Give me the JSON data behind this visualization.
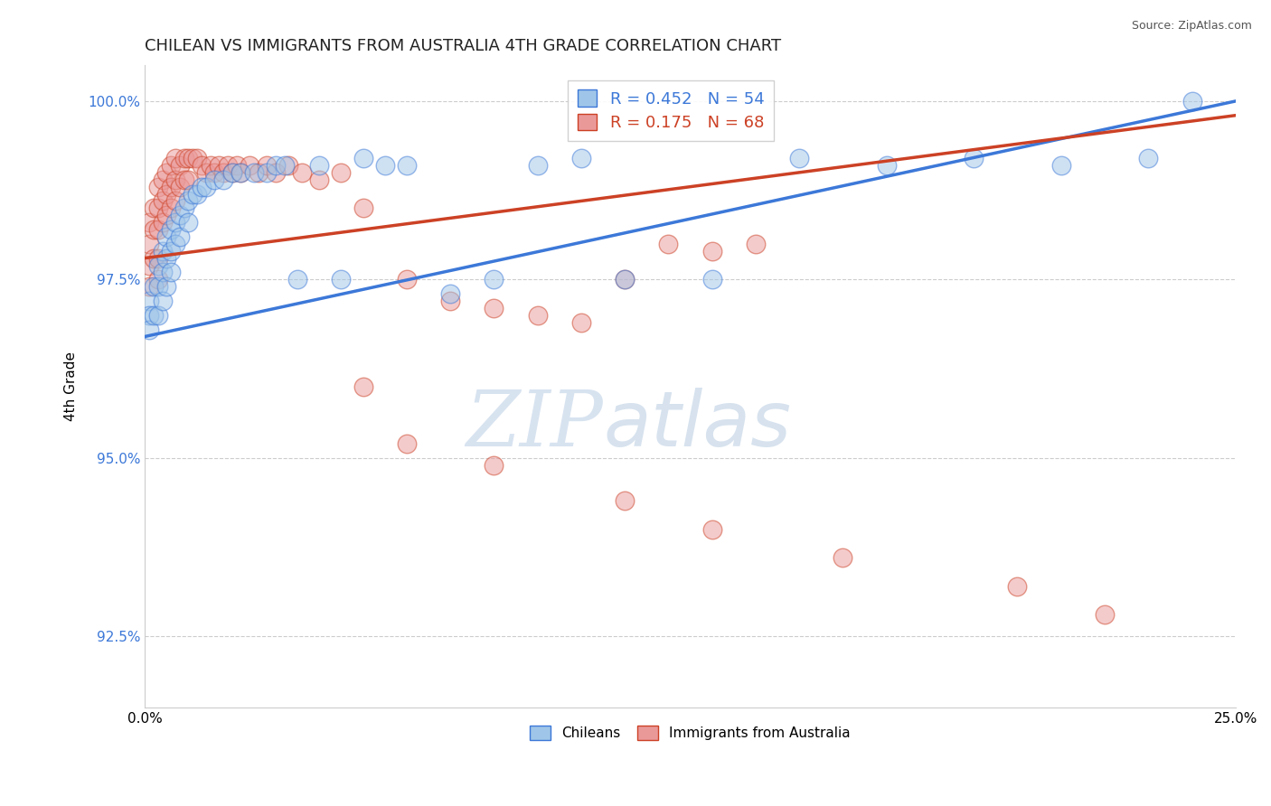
{
  "title": "CHILEAN VS IMMIGRANTS FROM AUSTRALIA 4TH GRADE CORRELATION CHART",
  "source_text": "Source: ZipAtlas.com",
  "ylabel": "4th Grade",
  "watermark_zip": "ZIP",
  "watermark_atlas": "atlas",
  "xlim": [
    0.0,
    0.25
  ],
  "ylim": [
    0.915,
    1.005
  ],
  "xtick_vals": [
    0.0,
    0.05,
    0.1,
    0.15,
    0.2,
    0.25
  ],
  "xtick_labels": [
    "0.0%",
    "",
    "",
    "",
    "",
    "25.0%"
  ],
  "ytick_vals": [
    0.925,
    0.95,
    0.975,
    1.0
  ],
  "ytick_labels": [
    "92.5%",
    "95.0%",
    "97.5%",
    "100.0%"
  ],
  "blue_color": "#9fc5e8",
  "pink_color": "#ea9999",
  "blue_line_color": "#3c78d8",
  "pink_line_color": "#cc4125",
  "legend_blue_label": "R = 0.452   N = 54",
  "legend_pink_label": "R = 0.175   N = 68",
  "chileans_label": "Chileans",
  "immigrants_label": "Immigrants from Australia",
  "blue_x": [
    0.001,
    0.001,
    0.001,
    0.002,
    0.002,
    0.003,
    0.003,
    0.003,
    0.004,
    0.004,
    0.004,
    0.005,
    0.005,
    0.005,
    0.006,
    0.006,
    0.006,
    0.007,
    0.007,
    0.008,
    0.008,
    0.009,
    0.01,
    0.01,
    0.011,
    0.012,
    0.013,
    0.014,
    0.016,
    0.018,
    0.02,
    0.022,
    0.025,
    0.028,
    0.03,
    0.032,
    0.035,
    0.04,
    0.045,
    0.05,
    0.055,
    0.06,
    0.07,
    0.08,
    0.09,
    0.1,
    0.11,
    0.13,
    0.15,
    0.17,
    0.19,
    0.21,
    0.23,
    0.24
  ],
  "blue_y": [
    0.972,
    0.97,
    0.968,
    0.974,
    0.97,
    0.977,
    0.974,
    0.97,
    0.979,
    0.976,
    0.972,
    0.981,
    0.978,
    0.974,
    0.982,
    0.979,
    0.976,
    0.983,
    0.98,
    0.984,
    0.981,
    0.985,
    0.986,
    0.983,
    0.987,
    0.987,
    0.988,
    0.988,
    0.989,
    0.989,
    0.99,
    0.99,
    0.99,
    0.99,
    0.991,
    0.991,
    0.975,
    0.991,
    0.975,
    0.992,
    0.991,
    0.991,
    0.973,
    0.975,
    0.991,
    0.992,
    0.975,
    0.975,
    0.992,
    0.991,
    0.992,
    0.991,
    0.992,
    1.0
  ],
  "pink_x": [
    0.001,
    0.001,
    0.001,
    0.001,
    0.002,
    0.002,
    0.002,
    0.003,
    0.003,
    0.003,
    0.003,
    0.003,
    0.004,
    0.004,
    0.004,
    0.005,
    0.005,
    0.005,
    0.006,
    0.006,
    0.006,
    0.007,
    0.007,
    0.007,
    0.008,
    0.008,
    0.009,
    0.009,
    0.01,
    0.01,
    0.011,
    0.012,
    0.013,
    0.014,
    0.015,
    0.016,
    0.017,
    0.018,
    0.019,
    0.02,
    0.021,
    0.022,
    0.024,
    0.026,
    0.028,
    0.03,
    0.033,
    0.036,
    0.04,
    0.045,
    0.05,
    0.06,
    0.07,
    0.08,
    0.09,
    0.1,
    0.11,
    0.12,
    0.13,
    0.14,
    0.05,
    0.06,
    0.08,
    0.11,
    0.13,
    0.16,
    0.2,
    0.22
  ],
  "pink_y": [
    0.983,
    0.98,
    0.977,
    0.974,
    0.985,
    0.982,
    0.978,
    0.988,
    0.985,
    0.982,
    0.978,
    0.975,
    0.989,
    0.986,
    0.983,
    0.99,
    0.987,
    0.984,
    0.991,
    0.988,
    0.985,
    0.992,
    0.989,
    0.986,
    0.991,
    0.988,
    0.992,
    0.989,
    0.992,
    0.989,
    0.992,
    0.992,
    0.991,
    0.99,
    0.991,
    0.99,
    0.991,
    0.99,
    0.991,
    0.99,
    0.991,
    0.99,
    0.991,
    0.99,
    0.991,
    0.99,
    0.991,
    0.99,
    0.989,
    0.99,
    0.985,
    0.975,
    0.972,
    0.971,
    0.97,
    0.969,
    0.975,
    0.98,
    0.979,
    0.98,
    0.96,
    0.952,
    0.949,
    0.944,
    0.94,
    0.936,
    0.932,
    0.928
  ],
  "blue_trend_x": [
    0.0,
    0.25
  ],
  "blue_trend_y": [
    0.967,
    1.0
  ],
  "pink_trend_x": [
    0.0,
    0.25
  ],
  "pink_trend_y": [
    0.978,
    0.998
  ]
}
